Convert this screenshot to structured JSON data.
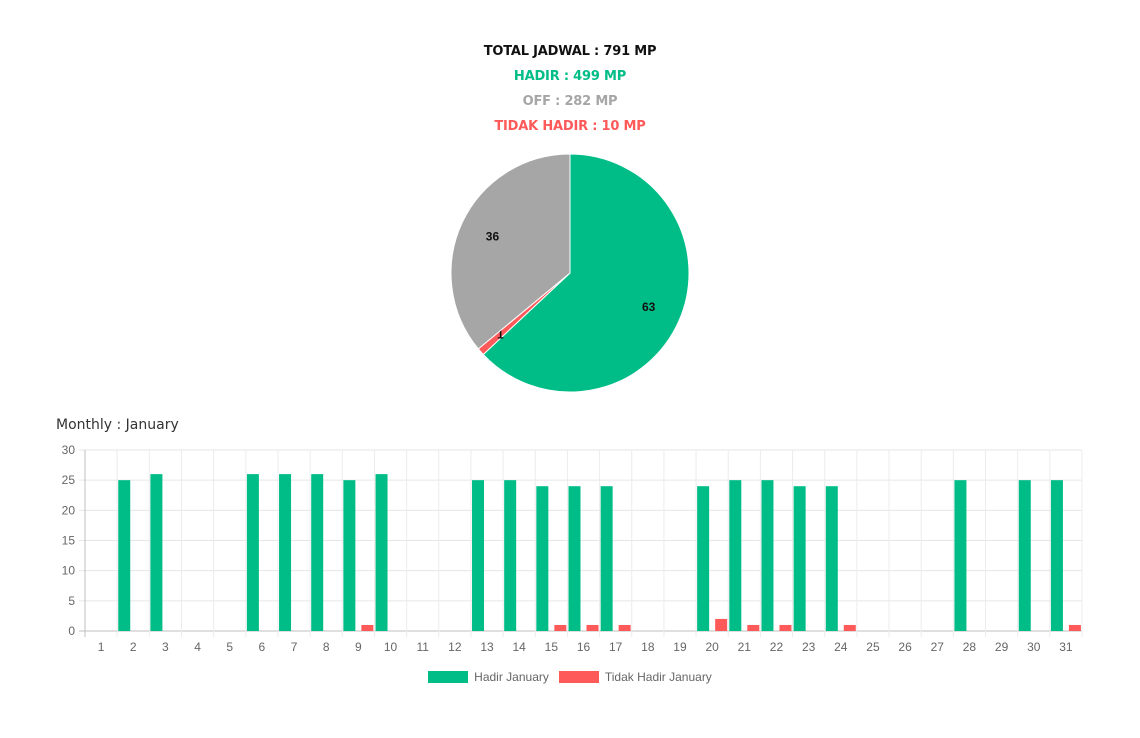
{
  "summary": {
    "total": "TOTAL JADWAL : 791 MP",
    "hadir": "HADIR : 499 MP",
    "off": "OFF : 282 MP",
    "tidak_hadir": "TIDAK HADIR : 10 MP"
  },
  "colors": {
    "hadir": "#00bd87",
    "off": "#a6a6a6",
    "tidak_hadir": "#ff5a5a"
  },
  "monthly_title": "Monthly : January",
  "chart_data": [
    {
      "type": "pie",
      "slices": [
        {
          "value": 63,
          "label": "63",
          "color": "#00bd87"
        },
        {
          "value": 1,
          "label": "1",
          "color": "#ff5a5a"
        },
        {
          "value": 36,
          "label": "36",
          "color": "#a6a6a6"
        }
      ]
    },
    {
      "type": "bar",
      "categories": [
        "1",
        "2",
        "3",
        "4",
        "5",
        "6",
        "7",
        "8",
        "9",
        "10",
        "11",
        "12",
        "13",
        "14",
        "15",
        "16",
        "17",
        "18",
        "19",
        "20",
        "21",
        "22",
        "23",
        "24",
        "25",
        "26",
        "27",
        "28",
        "29",
        "30",
        "31"
      ],
      "series": [
        {
          "name": "Hadir January",
          "color": "#00bd87",
          "values": [
            0,
            25,
            26,
            0,
            0,
            26,
            26,
            26,
            25,
            26,
            0,
            0,
            25,
            25,
            24,
            24,
            24,
            0,
            0,
            24,
            25,
            25,
            24,
            24,
            0,
            0,
            0,
            25,
            0,
            25,
            25
          ]
        },
        {
          "name": "Tidak Hadir January",
          "color": "#ff5a5a",
          "values": [
            0,
            0,
            0,
            0,
            0,
            0,
            0,
            0,
            1,
            0,
            0,
            0,
            0,
            0,
            1,
            1,
            1,
            0,
            0,
            2,
            1,
            1,
            0,
            1,
            0,
            0,
            0,
            0,
            0,
            0,
            1
          ]
        }
      ],
      "ylim": [
        0,
        30
      ],
      "yticks": [
        0,
        5,
        10,
        15,
        20,
        25,
        30
      ],
      "grid": true,
      "legend": "bottom"
    }
  ]
}
